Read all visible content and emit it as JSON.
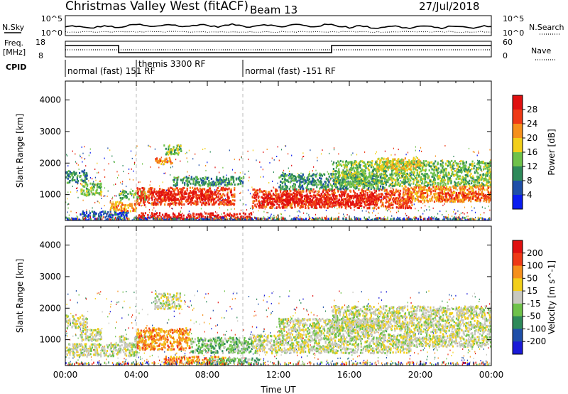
{
  "header": {
    "title": "Christmas Valley West (fitACF)",
    "beam": "Beam 13",
    "date": "27/Jul/2018"
  },
  "noise_panel": {
    "left_label": "N.Sky",
    "right_label": "N.Search",
    "left_ticks": [
      "10^5",
      "10^0"
    ],
    "right_ticks": [
      "10^5",
      "10^0"
    ]
  },
  "freq_panel": {
    "left_label_line1": "Freq.",
    "left_label_line2": "[MHz]",
    "left_ticks": [
      "18",
      "8"
    ],
    "right_ticks": [
      "60",
      "0"
    ],
    "right_label": "Nave"
  },
  "cpid": {
    "label": "CPID",
    "segments": [
      {
        "text": "normal (fast) 151 RF",
        "start_h": 0,
        "end_h": 4
      },
      {
        "text": "themis 3300 RF",
        "start_h": 4,
        "end_h": 10
      },
      {
        "text": "normal (fast) -151 RF",
        "start_h": 10,
        "end_h": 24
      }
    ]
  },
  "chart_data": [
    {
      "type": "heatmap",
      "title": "",
      "xlabel": "Time UT",
      "ylabel": "Slant Range [km]",
      "xlim": [
        0,
        24
      ],
      "ylim": [
        180,
        4600
      ],
      "yticks": [
        1000,
        2000,
        3000,
        4000
      ],
      "colorbar": {
        "label": "Power [dB]",
        "ticks": [
          "4",
          "8",
          "12",
          "16",
          "20",
          "24",
          "28"
        ],
        "colors": [
          "#0a1cf0",
          "#1f4fa8",
          "#2e8a5a",
          "#6fc24a",
          "#f2cf1a",
          "#f6901c",
          "#ef3a16",
          "#e01010"
        ]
      },
      "regions": [
        {
          "t0": 0.0,
          "t1": 1.2,
          "r0": 1400,
          "r1": 1800,
          "level": 2
        },
        {
          "t0": 0.8,
          "t1": 2.0,
          "r0": 1000,
          "r1": 1400,
          "level": 3
        },
        {
          "t0": 0.8,
          "t1": 3.5,
          "r0": 300,
          "r1": 500,
          "level": 1
        },
        {
          "t0": 2.5,
          "t1": 4.0,
          "r0": 500,
          "r1": 800,
          "level": 5
        },
        {
          "t0": 3.0,
          "t1": 4.5,
          "r0": 850,
          "r1": 1150,
          "level": 3
        },
        {
          "t0": 4.0,
          "t1": 9.5,
          "r0": 700,
          "r1": 1250,
          "level": 6
        },
        {
          "t0": 4.8,
          "t1": 8.5,
          "r0": 850,
          "r1": 1150,
          "level": 7
        },
        {
          "t0": 4.0,
          "t1": 10.5,
          "r0": 250,
          "r1": 450,
          "level": 7
        },
        {
          "t0": 5.0,
          "t1": 6.0,
          "r0": 2000,
          "r1": 2200,
          "level": 5
        },
        {
          "t0": 5.5,
          "t1": 6.5,
          "r0": 2300,
          "r1": 2600,
          "level": 3
        },
        {
          "t0": 6.0,
          "t1": 10.0,
          "r0": 1300,
          "r1": 1600,
          "level": 2
        },
        {
          "t0": 10.5,
          "t1": 19.5,
          "r0": 600,
          "r1": 1200,
          "level": 6
        },
        {
          "t0": 11.0,
          "t1": 17.5,
          "r0": 700,
          "r1": 1050,
          "level": 7
        },
        {
          "t0": 12.0,
          "t1": 18.0,
          "r0": 1200,
          "r1": 1700,
          "level": 2
        },
        {
          "t0": 15.0,
          "t1": 24.0,
          "r0": 1300,
          "r1": 2100,
          "level": 3
        },
        {
          "t0": 17.5,
          "t1": 20.0,
          "r0": 1800,
          "r1": 2200,
          "level": 4
        },
        {
          "t0": 19.0,
          "t1": 24.0,
          "r0": 800,
          "r1": 1300,
          "level": 5
        },
        {
          "t0": 21.0,
          "t1": 24.0,
          "r0": 850,
          "r1": 1100,
          "level": 6
        },
        {
          "t0": 0.0,
          "t1": 24.0,
          "r0": 180,
          "r1": 280,
          "level": 1
        }
      ]
    },
    {
      "type": "heatmap",
      "title": "",
      "xlabel": "Time UT",
      "ylabel": "Slant Range [km]",
      "xlim": [
        0,
        24
      ],
      "ylim": [
        180,
        4600
      ],
      "yticks": [
        1000,
        2000,
        3000,
        4000
      ],
      "xticks": [
        "00:00",
        "04:00",
        "08:00",
        "12:00",
        "16:00",
        "20:00",
        "00:00"
      ],
      "colorbar": {
        "label": "Velocity [m s^-1]",
        "ticks": [
          "200",
          "100",
          "50",
          "15",
          "-15",
          "-50",
          "-100",
          "-200"
        ],
        "colors": [
          "#1a1ad8",
          "#1f4fa8",
          "#2e8a5a",
          "#6fc24a",
          "#c8c8c0",
          "#f2cf1a",
          "#f6901c",
          "#ef3a16",
          "#e01010"
        ]
      },
      "regions": [
        {
          "t0": 0.0,
          "t1": 1.2,
          "r0": 1400,
          "r1": 1800,
          "level": 4
        },
        {
          "t0": 0.8,
          "t1": 2.0,
          "r0": 1000,
          "r1": 1400,
          "level": 4
        },
        {
          "t0": 3.0,
          "t1": 4.5,
          "r0": 850,
          "r1": 1150,
          "level": 4
        },
        {
          "t0": 4.0,
          "t1": 7.0,
          "r0": 700,
          "r1": 1400,
          "level": 6
        },
        {
          "t0": 7.0,
          "t1": 10.5,
          "r0": 600,
          "r1": 1100,
          "level": 3
        },
        {
          "t0": 5.5,
          "t1": 9.0,
          "r0": 250,
          "r1": 500,
          "level": 6
        },
        {
          "t0": 8.0,
          "t1": 11.0,
          "r0": 250,
          "r1": 450,
          "level": 3
        },
        {
          "t0": 5.0,
          "t1": 6.5,
          "r0": 2000,
          "r1": 2500,
          "level": 4
        },
        {
          "t0": 10.5,
          "t1": 19.5,
          "r0": 600,
          "r1": 1200,
          "level": 4
        },
        {
          "t0": 12.0,
          "t1": 18.0,
          "r0": 1200,
          "r1": 1700,
          "level": 4
        },
        {
          "t0": 15.0,
          "t1": 24.0,
          "r0": 1300,
          "r1": 2100,
          "level": 4
        },
        {
          "t0": 19.0,
          "t1": 24.0,
          "r0": 800,
          "r1": 1300,
          "level": 4
        },
        {
          "t0": 0.0,
          "t1": 4.0,
          "r0": 500,
          "r1": 900,
          "level": 4
        }
      ]
    }
  ]
}
